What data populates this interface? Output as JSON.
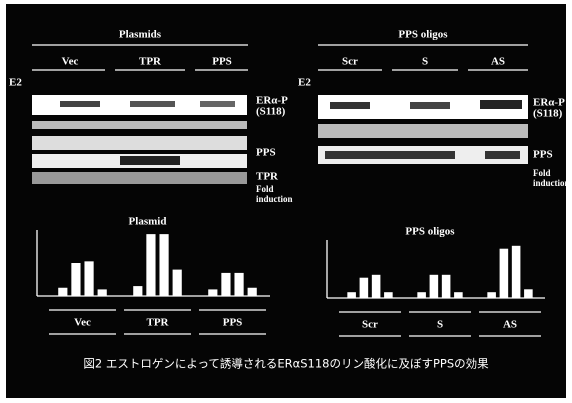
{
  "figure": {
    "left_blot": {
      "title": "Plasmids",
      "lanes": [
        "Vec",
        "TPR",
        "PPS"
      ],
      "treatment": "E2",
      "rows": [
        [
          "ERα-P",
          "(S118)"
        ],
        [
          "PPS"
        ],
        [
          "TPR"
        ],
        [
          "Fold",
          "induction"
        ]
      ]
    },
    "right_blot": {
      "title": "PPS oligos",
      "lanes": [
        "Scr",
        "S",
        "AS"
      ],
      "treatment": "E2",
      "rows": [
        [
          "ERα-P",
          "(S118)"
        ],
        [
          "PPS"
        ],
        [
          "Fold",
          "induction"
        ]
      ]
    },
    "caption": "図2 エストロゲンによって誘導されるERαS118のリン酸化に及ぼすPPSの効果"
  },
  "chart_data": [
    {
      "type": "bar",
      "title": "Plasmid",
      "categories": [
        "Vec",
        "TPR",
        "PPS"
      ],
      "ylim": [
        0,
        8
      ],
      "series": [
        {
          "color": "#ffffff",
          "values": [
            1,
            1.2,
            0.8
          ]
        },
        {
          "color": "#ffffff",
          "values": [
            4,
            7.5,
            2.8
          ]
        },
        {
          "color": "#ffffff",
          "values": [
            4.2,
            7.5,
            2.8
          ]
        },
        {
          "color": "#ffffff",
          "values": [
            0.8,
            3.2,
            1
          ]
        }
      ]
    },
    {
      "type": "bar",
      "title": "PPS oligos",
      "categories": [
        "Scr",
        "S",
        "AS"
      ],
      "ylim": [
        0,
        8
      ],
      "series": [
        {
          "color": "#ffffff",
          "values": [
            0.8,
            0.8,
            0.8
          ]
        },
        {
          "color": "#ffffff",
          "values": [
            2.8,
            3.2,
            6.8
          ]
        },
        {
          "color": "#ffffff",
          "values": [
            3.2,
            3.2,
            7.2
          ]
        },
        {
          "color": "#ffffff",
          "values": [
            0.8,
            0.8,
            1.2
          ]
        }
      ]
    }
  ]
}
